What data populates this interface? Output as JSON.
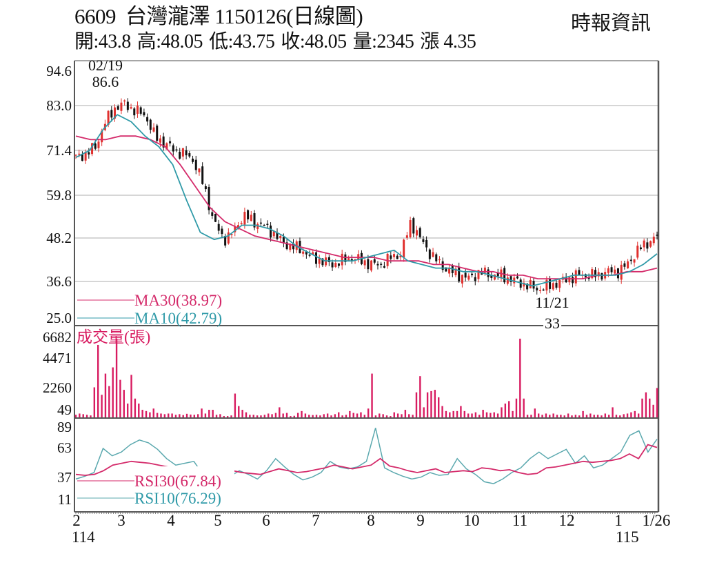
{
  "header": {
    "stock_code": "6609",
    "stock_name": "台灣瀧澤",
    "date_label": "1150126(日線圖)",
    "brand": "時報資訊"
  },
  "quote": {
    "open": "開:43.8",
    "high": "高:48.05",
    "low": "低:43.75",
    "close": "收:48.05",
    "volume": "量:2345",
    "change": "漲 4.35"
  },
  "colors": {
    "up_candle": "#e0302e",
    "down_candle": "#111111",
    "ma30": "#d42a6a",
    "ma10": "#2f9aa8",
    "volume_bar": "#d81b60",
    "rsi30": "#d42a6a",
    "rsi10": "#5aa8ae",
    "grid": "#c8c8c8",
    "axis": "#555555"
  },
  "chart_data": [
    {
      "type": "candlestick",
      "title": "6609 台灣瀧澤 1150126(日線圖)",
      "ylim": [
        25.0,
        94.6
      ],
      "yticks": [
        "94.6",
        "83.0",
        "71.4",
        "59.8",
        "48.2",
        "36.6",
        "25.0"
      ],
      "grid": true,
      "annotations": [
        {
          "label_date": "02/19",
          "label_value": "86.6",
          "kind": "high"
        },
        {
          "label_date": "11/21",
          "label_value": "33",
          "kind": "low"
        }
      ],
      "legend": [
        {
          "name": "MA30",
          "value": "MA30(38.97)"
        },
        {
          "name": "MA10",
          "value": "MA10(42.79)"
        }
      ],
      "x_months": [
        "2",
        "3",
        "4",
        "5",
        "6",
        "7",
        "8",
        "9",
        "10",
        "11",
        "12",
        "1",
        "1/26"
      ],
      "close_approx": [
        70,
        71,
        73,
        80,
        84,
        85,
        83,
        82,
        76,
        74,
        72,
        71,
        69,
        62,
        52,
        47,
        49,
        54,
        52,
        51,
        49,
        46,
        45,
        44,
        42,
        41,
        40,
        41,
        42,
        41,
        40,
        40,
        42,
        43,
        52,
        47,
        43,
        40,
        38,
        37,
        36,
        38,
        37,
        37,
        36,
        35,
        34,
        33,
        34,
        35,
        36,
        37,
        37,
        37,
        38,
        38,
        40,
        44,
        46,
        48
      ],
      "series": [
        {
          "name": "MA30",
          "values": [
            76,
            75,
            75,
            76,
            76,
            75,
            73,
            68,
            62,
            56,
            52,
            50,
            48,
            47,
            46,
            45,
            44,
            43,
            42,
            42,
            42,
            41,
            41,
            41,
            40,
            40,
            39,
            38,
            38,
            37,
            37,
            36,
            36,
            36,
            36,
            37,
            37,
            38,
            38,
            39
          ]
        },
        {
          "name": "MA10",
          "values": [
            70,
            72,
            78,
            82,
            80,
            76,
            73,
            68,
            58,
            49,
            47,
            48,
            51,
            51,
            50,
            48,
            45,
            43,
            41,
            41,
            41,
            42,
            43,
            44,
            41,
            40,
            39,
            39,
            38,
            38,
            37,
            36,
            35,
            34,
            35,
            36,
            37,
            37,
            37,
            37,
            38,
            40,
            43
          ]
        }
      ]
    },
    {
      "type": "bar",
      "title": "成交量(張)",
      "ylim": [
        49,
        6682
      ],
      "yticks": [
        "6682",
        "4471",
        "2260",
        "49"
      ],
      "values_approx": [
        200,
        300,
        250,
        200,
        150,
        2400,
        5800,
        1800,
        3500,
        2500,
        4000,
        6300,
        3000,
        2200,
        1100,
        3400,
        1500,
        1100,
        600,
        500,
        400,
        700,
        350,
        300,
        250,
        300,
        300,
        200,
        250,
        180,
        280,
        220,
        200,
        250,
        700,
        300,
        600,
        600,
        200,
        250,
        100,
        100,
        150,
        1900,
        900,
        600,
        400,
        200,
        200,
        150,
        150,
        200,
        300,
        250,
        350,
        800,
        300,
        350,
        100,
        120,
        350,
        500,
        300,
        200,
        180,
        200,
        150,
        250,
        300,
        150,
        250,
        400,
        150,
        200,
        500,
        350,
        300,
        400,
        200,
        700,
        3500,
        150,
        300,
        250,
        150,
        100,
        400,
        300,
        250,
        600,
        250,
        200,
        2000,
        3300,
        800,
        2000,
        2100,
        2200,
        1600,
        900,
        500,
        400,
        500,
        500,
        900,
        500,
        300,
        300,
        400,
        200,
        600,
        400,
        350,
        400,
        300,
        800,
        1100,
        1300,
        500,
        1500,
        6300,
        1500,
        200,
        200,
        700,
        300,
        200,
        300,
        200,
        300,
        200,
        200,
        150,
        300,
        150,
        200,
        150,
        500,
        200,
        300,
        200,
        200,
        150,
        300,
        200,
        800,
        200,
        150,
        250,
        300,
        400,
        500,
        300,
        1500,
        2000,
        1500,
        1000,
        2345
      ]
    },
    {
      "type": "line",
      "title": "RSI",
      "ylim": [
        11,
        89
      ],
      "yticks": [
        "89",
        "63",
        "37",
        "11"
      ],
      "legend": [
        {
          "name": "RSI30",
          "value": "RSI30(67.84)"
        },
        {
          "name": "RSI10",
          "value": "RSI10(76.29)"
        }
      ],
      "series": [
        {
          "name": "RSI30",
          "values": [
            38,
            37,
            38,
            42,
            48,
            50,
            52,
            51,
            50,
            48,
            46,
            45,
            44,
            43,
            42,
            44,
            43,
            42,
            40,
            39,
            38,
            41,
            44,
            42,
            40,
            41,
            43,
            45,
            48,
            46,
            44,
            46,
            48,
            55,
            47,
            45,
            42,
            40,
            42,
            44,
            40,
            41,
            42,
            41,
            45,
            44,
            42,
            43,
            40,
            38,
            39,
            45,
            46,
            48,
            50,
            52,
            51,
            52,
            53,
            55,
            60,
            55,
            70,
            67
          ]
        },
        {
          "name": "RSI10",
          "values": [
            33,
            36,
            40,
            66,
            58,
            62,
            70,
            75,
            72,
            65,
            55,
            48,
            50,
            52,
            38,
            35,
            33,
            36,
            42,
            38,
            33,
            42,
            55,
            46,
            38,
            32,
            35,
            40,
            52,
            46,
            44,
            46,
            52,
            88,
            45,
            40,
            36,
            33,
            35,
            40,
            37,
            38,
            55,
            44,
            38,
            30,
            28,
            33,
            40,
            45,
            55,
            62,
            55,
            60,
            65,
            50,
            58,
            45,
            48,
            55,
            62,
            80,
            85,
            62,
            76
          ]
        }
      ]
    }
  ],
  "axes": {
    "price_ticks": [
      "94.6",
      "83.0",
      "71.4",
      "59.8",
      "48.2",
      "36.6",
      "25.0"
    ],
    "volume_ticks": [
      "6682",
      "4471",
      "2260",
      "49"
    ],
    "rsi_ticks": [
      "89",
      "63",
      "37",
      "11"
    ],
    "x_ticks": [
      "2",
      "3",
      "4",
      "5",
      "6",
      "7",
      "8",
      "9",
      "10",
      "11",
      "12",
      "1",
      "1/26"
    ],
    "year_labels": [
      "114",
      "115"
    ]
  },
  "annotations": {
    "high_date": "02/19",
    "high_value": "86.6",
    "low_date": "11/21",
    "low_value": "33"
  },
  "legends": {
    "ma30": "MA30(38.97)",
    "ma10": "MA10(42.79)",
    "volume_title": "成交量(張)",
    "rsi30": "RSI30(67.84)",
    "rsi10": "RSI10(76.29)"
  }
}
